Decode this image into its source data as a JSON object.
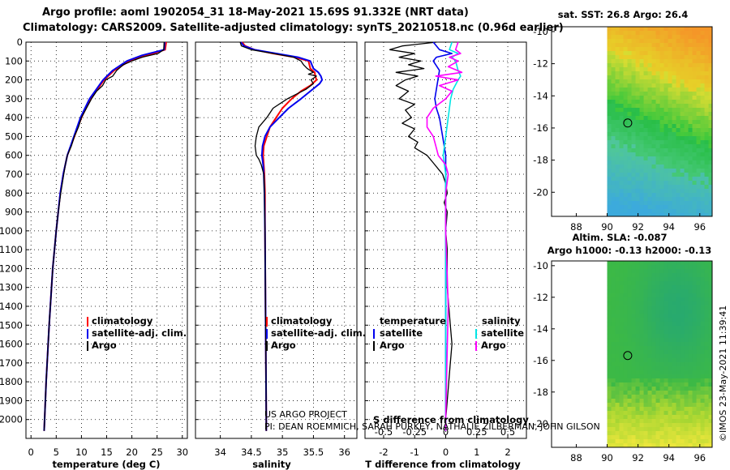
{
  "header": {
    "title_line1": "Argo profile: aoml 1902054_31 18-May-2021 15.69S 91.332E (NRT data)",
    "title_line2": "Climatology: CARS2009. Satellite-adjusted climatology: synTS_20210518.nc (0.96d earlier)"
  },
  "credits": {
    "project": "US ARGO PROJECT",
    "pi": "PI: DEAN ROEMMICH, SARAH PURKEY, NATHALIE ZILBERMAN, JOHN GILSON",
    "watermark": "©IMOS 23-May-2021 11:39:41"
  },
  "colors": {
    "argo": "#000000",
    "climatology": "#ff0000",
    "satellite": "#0000ee",
    "sal_satellite": "#00e5e5",
    "sal_argo": "#ff00ff",
    "grid": "#000000"
  },
  "legend_t": {
    "climatology": "climatology",
    "satellite": "satellite-adj. clim.",
    "argo": "Argo"
  },
  "legend_s": {
    "climatology": "climatology",
    "satellite": "satellite-adj. clim.",
    "argo": "Argo"
  },
  "legend_d": {
    "temperature": "temperature",
    "salinity": "salinity",
    "t_satellite": "satellite",
    "t_argo": "Argo",
    "s_satellite": "satellite",
    "s_argo": "Argo",
    "s_axis_title": "S difference from climatology"
  },
  "maps": {
    "sst_title": "sat. SST: 26.8 Argo: 26.4",
    "sla_title1": "Altim. SLA: -0.087",
    "sla_title2": "Argo h1000: -0.13 h2000: -0.13",
    "lon_ticks": [
      "88",
      "90",
      "92",
      "94",
      "96"
    ],
    "lat_ticks": [
      "-10",
      "-12",
      "-14",
      "-16",
      "-18",
      "-20"
    ],
    "xlim": [
      86.4,
      96.8
    ],
    "ylim": [
      -21.5,
      -9.7
    ],
    "data_xmin": 90,
    "float_position": [
      91.332,
      -15.69
    ]
  },
  "chart_data": [
    {
      "type": "line",
      "panel": "temperature",
      "xlabel": "temperature (deg C)",
      "ylabel": "",
      "xlim": [
        -1,
        31
      ],
      "ylim": [
        2100,
        0
      ],
      "xticks": [
        "0",
        "5",
        "10",
        "15",
        "20",
        "25",
        "30"
      ],
      "yticks": [
        "0",
        "100",
        "200",
        "300",
        "400",
        "500",
        "600",
        "700",
        "800",
        "900",
        "1000",
        "1100",
        "1200",
        "1300",
        "1400",
        "1500",
        "1600",
        "1700",
        "1800",
        "1900",
        "2000"
      ],
      "y_tick_values": [
        0,
        100,
        200,
        300,
        400,
        500,
        600,
        700,
        800,
        900,
        1000,
        1100,
        1200,
        1300,
        1400,
        1500,
        1600,
        1700,
        1800,
        1900,
        2000
      ],
      "x_tick_values": [
        0,
        5,
        10,
        15,
        20,
        25,
        30
      ],
      "series": [
        {
          "name": "climatology",
          "color": "#ff0000",
          "width": 2,
          "depth": [
            0,
            40,
            70,
            100,
            150,
            200,
            300,
            400,
            500,
            600,
            700,
            800,
            1000,
            1200,
            1500,
            1800,
            2000,
            2060
          ],
          "values": [
            26.8,
            26.6,
            23.0,
            19.5,
            16.5,
            14.5,
            11.8,
            10.0,
            8.6,
            7.2,
            6.4,
            5.8,
            5.0,
            4.3,
            3.6,
            3.0,
            2.7,
            2.6
          ]
        },
        {
          "name": "satellite-adj. clim.",
          "color": "#0000ee",
          "width": 2,
          "depth": [
            0,
            40,
            70,
            100,
            150,
            200,
            300,
            400,
            500,
            600,
            700,
            800,
            1000,
            1200,
            1500,
            1800,
            2000,
            2060
          ],
          "values": [
            26.5,
            26.4,
            22.0,
            19.0,
            16.2,
            14.3,
            11.6,
            9.8,
            8.5,
            7.2,
            6.4,
            5.8,
            5.0,
            4.3,
            3.6,
            3.0,
            2.7,
            2.6
          ]
        },
        {
          "name": "Argo",
          "color": "#000000",
          "width": 1.3,
          "depth": [
            0,
            40,
            60,
            80,
            100,
            120,
            150,
            180,
            200,
            230,
            260,
            300,
            350,
            400,
            450,
            500,
            550,
            600,
            650,
            700,
            800,
            900,
            1000,
            1200,
            1500,
            1800,
            2000,
            2060
          ],
          "values": [
            26.4,
            26.3,
            25.2,
            22.0,
            20.0,
            18.3,
            17.0,
            16.2,
            14.8,
            14.2,
            13.0,
            12.0,
            11.0,
            10.0,
            9.4,
            8.6,
            8.0,
            7.2,
            6.8,
            6.5,
            5.9,
            5.4,
            5.0,
            4.3,
            3.6,
            3.0,
            2.7,
            2.6
          ]
        }
      ]
    },
    {
      "type": "line",
      "panel": "salinity",
      "xlabel": "salinity",
      "xlim": [
        33.6,
        36.2
      ],
      "ylim": [
        2100,
        0
      ],
      "xticks": [
        "34",
        "34.5",
        "35",
        "35.5",
        "36"
      ],
      "x_tick_values": [
        34,
        34.5,
        35,
        35.5,
        36
      ],
      "series": [
        {
          "name": "climatology",
          "color": "#ff0000",
          "width": 2,
          "depth": [
            0,
            20,
            40,
            60,
            80,
            100,
            140,
            160,
            180,
            200,
            230,
            260,
            300,
            350,
            400,
            450,
            500,
            550,
            600,
            650,
            700,
            800,
            1000,
            1500,
            2000,
            2060
          ],
          "values": [
            34.35,
            34.4,
            34.55,
            34.85,
            35.2,
            35.42,
            35.45,
            35.52,
            35.53,
            35.55,
            35.45,
            35.3,
            35.15,
            35.0,
            34.9,
            34.8,
            34.75,
            34.7,
            34.69,
            34.7,
            34.71,
            34.72,
            34.72,
            34.73,
            34.74,
            34.74
          ]
        },
        {
          "name": "satellite-adj. clim.",
          "color": "#0000ee",
          "width": 2,
          "depth": [
            0,
            20,
            40,
            60,
            80,
            100,
            140,
            160,
            180,
            200,
            220,
            260,
            300,
            350,
            400,
            450,
            500,
            550,
            600,
            650,
            700,
            800,
            1000,
            1500,
            2000,
            2060
          ],
          "values": [
            34.33,
            34.38,
            34.55,
            34.9,
            35.25,
            35.45,
            35.5,
            35.58,
            35.62,
            35.64,
            35.6,
            35.45,
            35.3,
            35.1,
            34.95,
            34.8,
            34.72,
            34.68,
            34.67,
            34.69,
            34.7,
            34.71,
            34.72,
            34.73,
            34.74,
            34.74
          ]
        },
        {
          "name": "Argo",
          "color": "#000000",
          "width": 1.3,
          "depth": [
            0,
            20,
            40,
            60,
            80,
            100,
            120,
            140,
            160,
            170,
            180,
            200,
            220,
            250,
            280,
            300,
            350,
            400,
            450,
            500,
            550,
            600,
            620,
            650,
            700,
            800,
            1000,
            1500,
            2000,
            2060
          ],
          "values": [
            34.32,
            34.34,
            34.5,
            34.85,
            35.18,
            35.3,
            35.34,
            35.4,
            35.5,
            35.42,
            35.55,
            35.46,
            35.5,
            35.38,
            35.2,
            35.08,
            34.85,
            34.75,
            34.62,
            34.58,
            34.56,
            34.58,
            34.62,
            34.66,
            34.7,
            34.71,
            34.72,
            34.73,
            34.74,
            34.74
          ]
        }
      ]
    },
    {
      "type": "line",
      "panel": "difference",
      "xlabel": "T difference from climatology",
      "x2label": "S difference from climatology",
      "xlim": [
        -2.6,
        2.6
      ],
      "x2lim": [
        -0.65,
        0.65
      ],
      "ylim": [
        2100,
        0
      ],
      "xticks": [
        "-2",
        "-1",
        "0",
        "1",
        "2"
      ],
      "x_tick_values": [
        -2,
        -1,
        0,
        1,
        2
      ],
      "x2ticks": [
        "-0.5",
        "-0.25",
        "0",
        "0.25",
        "0.5"
      ],
      "x2_tick_values": [
        -0.5,
        -0.25,
        0,
        0.25,
        0.5
      ],
      "series": [
        {
          "name": "temperature Argo",
          "color": "#000000",
          "width": 1.3,
          "axis": "x",
          "depth": [
            0,
            20,
            40,
            60,
            80,
            100,
            120,
            140,
            160,
            180,
            200,
            230,
            260,
            300,
            330,
            360,
            400,
            430,
            460,
            500,
            530,
            560,
            600,
            640,
            680,
            700,
            750,
            800,
            850,
            900,
            1000,
            1100,
            1200,
            1300,
            1400,
            1500,
            1600,
            1700,
            1800,
            1900,
            2000,
            2060
          ],
          "values": [
            -0.3,
            -1.4,
            -1.8,
            -1.0,
            -1.5,
            -0.8,
            -1.2,
            -0.7,
            -1.6,
            -0.9,
            -1.3,
            -1.6,
            -1.2,
            -1.5,
            -1.0,
            -1.3,
            -1.1,
            -1.4,
            -1.0,
            -1.2,
            -0.9,
            -1.0,
            -0.6,
            -0.4,
            -0.2,
            -0.1,
            0.0,
            0.05,
            -0.05,
            0.05,
            0.0,
            0.05,
            0.05,
            0.05,
            0.1,
            0.15,
            0.2,
            0.15,
            0.1,
            0.05,
            0.0,
            0.0
          ]
        },
        {
          "name": "temperature satellite",
          "color": "#0000ee",
          "width": 1.6,
          "axis": "x",
          "depth": [
            0,
            40,
            60,
            80,
            100,
            150,
            200,
            250,
            300,
            350,
            400,
            500,
            600,
            700,
            800,
            1000,
            1500,
            2000,
            2060
          ],
          "values": [
            -0.4,
            -0.2,
            0.2,
            -0.3,
            -0.4,
            -0.2,
            -0.25,
            -0.3,
            -0.35,
            -0.3,
            -0.2,
            -0.1,
            0.0,
            0.0,
            0.0,
            0.0,
            0.0,
            0.0,
            0.0
          ]
        },
        {
          "name": "salinity satellite",
          "color": "#00e5e5",
          "width": 1.6,
          "axis": "x2",
          "depth": [
            0,
            40,
            60,
            80,
            100,
            150,
            180,
            200,
            250,
            300,
            400,
            500,
            600,
            700,
            800,
            1000,
            1500,
            2000,
            2060
          ],
          "values": [
            0.05,
            0.03,
            0.1,
            0.05,
            0.08,
            0.1,
            0.12,
            0.1,
            0.06,
            0.04,
            0.02,
            0.0,
            -0.02,
            0.0,
            0.0,
            0.0,
            0.0,
            0.0,
            0.0
          ]
        },
        {
          "name": "salinity Argo",
          "color": "#ff00ff",
          "width": 1.6,
          "axis": "x2",
          "depth": [
            0,
            40,
            60,
            80,
            100,
            130,
            160,
            180,
            200,
            230,
            260,
            300,
            350,
            400,
            450,
            500,
            550,
            600,
            650,
            700,
            800,
            1000,
            1400,
            1700,
            2000,
            2060
          ],
          "values": [
            0.1,
            0.08,
            0.12,
            0.03,
            0.1,
            0.02,
            0.13,
            -0.08,
            0.1,
            -0.05,
            0.05,
            0.0,
            -0.1,
            -0.15,
            -0.15,
            -0.1,
            -0.08,
            -0.06,
            0.0,
            0.02,
            0.0,
            0.0,
            0.02,
            0.01,
            0.0,
            0.0
          ]
        }
      ]
    }
  ]
}
